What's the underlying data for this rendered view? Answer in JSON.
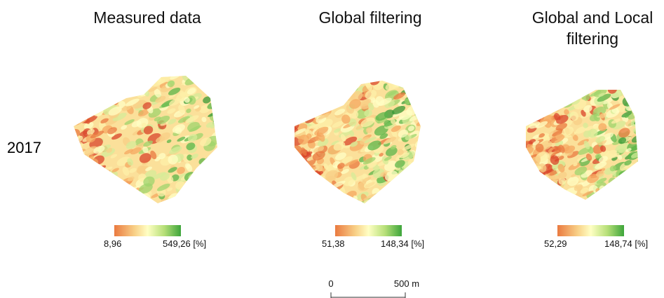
{
  "row_label": "2017",
  "panels": [
    {
      "title": "Measured data",
      "legend": {
        "min_label": "8,96",
        "max_label": "549,26 [%]"
      }
    },
    {
      "title": "Global filtering",
      "legend": {
        "min_label": "51,38",
        "max_label": "148,34 [%]"
      }
    },
    {
      "title_lines": [
        "Global and Local",
        "filtering"
      ],
      "legend": {
        "min_label": "52,29",
        "max_label": "148,74 [%]"
      }
    }
  ],
  "scale_bar": {
    "start_label": "0",
    "end_label": "500 m"
  }
}
